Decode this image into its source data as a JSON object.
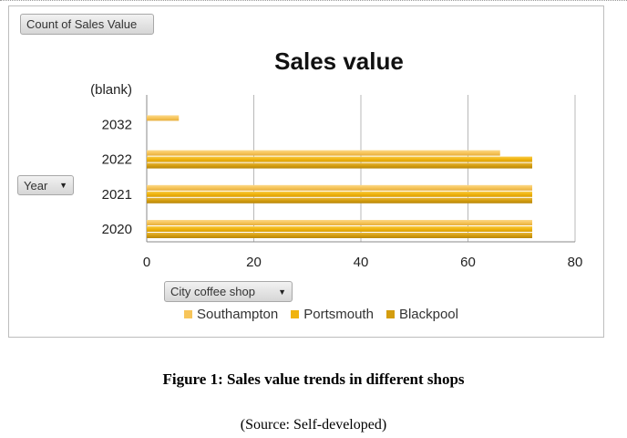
{
  "filters": {
    "values_field": "Count of Sales Value",
    "row_field": "Year",
    "series_field": "City coffee shop"
  },
  "caption": "Figure 1: Sales value trends in different shops",
  "source": "(Source: Self-developed)",
  "colors": {
    "Southampton": "#f7c55a",
    "Portsmouth": "#f0b30d",
    "Blackpool": "#d49d0e"
  },
  "chart_data": {
    "type": "bar",
    "orientation": "horizontal",
    "title": "Sales value",
    "xlabel": "",
    "ylabel": "",
    "categories": [
      "2020",
      "2021",
      "2022",
      "2032",
      "(blank)"
    ],
    "series": [
      {
        "name": "Southampton",
        "values": [
          72,
          72,
          66,
          6,
          null
        ]
      },
      {
        "name": "Portsmouth",
        "values": [
          72,
          72,
          72,
          null,
          null
        ]
      },
      {
        "name": "Blackpool",
        "values": [
          72,
          72,
          72,
          null,
          null
        ]
      }
    ],
    "xlim": [
      0,
      80
    ],
    "xticks": [
      0,
      20,
      40,
      60,
      80
    ],
    "grid": "vertical",
    "legend": "bottom"
  }
}
